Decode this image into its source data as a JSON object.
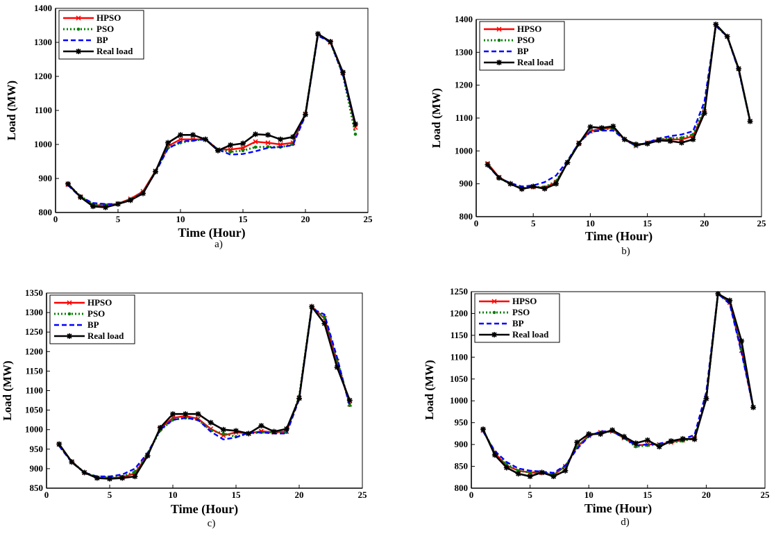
{
  "chart_data": [
    {
      "type": "line",
      "caption": "a)",
      "xlabel": "Time (Hour)",
      "ylabel": "Load (MW)",
      "xlim": [
        0,
        25
      ],
      "ylim": [
        800,
        1400
      ],
      "xticks": [
        0,
        5,
        10,
        15,
        20,
        25
      ],
      "yticks": [
        800,
        900,
        1000,
        1100,
        1200,
        1300,
        1400
      ],
      "legend_position": "top-left",
      "grid": false,
      "x": [
        1,
        2,
        3,
        4,
        5,
        6,
        7,
        8,
        9,
        10,
        11,
        12,
        13,
        14,
        15,
        16,
        17,
        18,
        19,
        20,
        21,
        22,
        23,
        24
      ],
      "series": [
        {
          "name": "HPSO",
          "color": "#ff0000",
          "style": "solid",
          "marker": "x",
          "values": [
            882,
            846,
            822,
            820,
            826,
            840,
            862,
            922,
            995,
            1015,
            1015,
            1015,
            985,
            985,
            990,
            1008,
            1005,
            1000,
            1005,
            1090,
            1325,
            1300,
            1210,
            1050
          ]
        },
        {
          "name": "PSO",
          "color": "#008000",
          "style": "dotted",
          "marker": "dot",
          "values": [
            882,
            848,
            825,
            822,
            825,
            838,
            860,
            920,
            990,
            1005,
            1012,
            1015,
            985,
            978,
            982,
            992,
            993,
            992,
            1000,
            1090,
            1325,
            1300,
            1205,
            1030
          ]
        },
        {
          "name": "BP",
          "color": "#0000ff",
          "style": "dashed",
          "marker": "none",
          "values": [
            880,
            845,
            828,
            825,
            825,
            836,
            858,
            918,
            988,
            1008,
            1012,
            1015,
            985,
            970,
            972,
            980,
            990,
            992,
            998,
            1085,
            1320,
            1300,
            1205,
            1055
          ]
        },
        {
          "name": "Real load",
          "color": "#000000",
          "style": "solid",
          "marker": "star",
          "values": [
            884,
            845,
            818,
            815,
            825,
            836,
            856,
            920,
            1005,
            1028,
            1028,
            1015,
            982,
            998,
            1003,
            1030,
            1028,
            1015,
            1022,
            1088,
            1325,
            1302,
            1212,
            1060
          ]
        }
      ]
    },
    {
      "type": "line",
      "caption": "b)",
      "xlabel": "Time (Hour)",
      "ylabel": "Load (MW)",
      "xlim": [
        0,
        25
      ],
      "ylim": [
        800,
        1400
      ],
      "xticks": [
        0,
        5,
        10,
        15,
        20,
        25
      ],
      "yticks": [
        800,
        900,
        1000,
        1100,
        1200,
        1300,
        1400
      ],
      "legend_position": "top-left",
      "grid": false,
      "x": [
        1,
        2,
        3,
        4,
        5,
        6,
        7,
        8,
        9,
        10,
        11,
        12,
        13,
        14,
        15,
        16,
        17,
        18,
        19,
        20,
        21,
        22,
        23,
        24
      ],
      "series": [
        {
          "name": "HPSO",
          "color": "#ff0000",
          "style": "solid",
          "marker": "x",
          "values": [
            962,
            920,
            900,
            885,
            890,
            888,
            905,
            965,
            1025,
            1060,
            1068,
            1070,
            1035,
            1015,
            1025,
            1035,
            1035,
            1035,
            1045,
            1120,
            1385,
            1348,
            1250,
            1090
          ]
        },
        {
          "name": "PSO",
          "color": "#008000",
          "style": "dotted",
          "marker": "dot",
          "values": [
            960,
            918,
            900,
            886,
            890,
            890,
            908,
            966,
            1025,
            1058,
            1065,
            1068,
            1035,
            1015,
            1025,
            1035,
            1038,
            1040,
            1050,
            1130,
            1382,
            1348,
            1248,
            1090
          ]
        },
        {
          "name": "BP",
          "color": "#0000ff",
          "style": "dashed",
          "marker": "none",
          "values": [
            955,
            918,
            902,
            892,
            895,
            905,
            925,
            970,
            1025,
            1058,
            1062,
            1062,
            1035,
            1015,
            1025,
            1038,
            1045,
            1050,
            1060,
            1150,
            1380,
            1348,
            1245,
            1090
          ]
        },
        {
          "name": "Real load",
          "color": "#000000",
          "style": "solid",
          "marker": "star",
          "values": [
            958,
            918,
            900,
            884,
            892,
            885,
            900,
            965,
            1022,
            1073,
            1070,
            1075,
            1035,
            1020,
            1022,
            1032,
            1030,
            1025,
            1035,
            1115,
            1385,
            1348,
            1250,
            1090
          ]
        }
      ]
    },
    {
      "type": "line",
      "caption": "c)",
      "xlabel": "Time (Hour)",
      "ylabel": "Load (MW)",
      "xlim": [
        0,
        25
      ],
      "ylim": [
        850,
        1350
      ],
      "xticks": [
        0,
        5,
        10,
        15,
        20,
        25
      ],
      "yticks": [
        850,
        900,
        950,
        1000,
        1050,
        1100,
        1150,
        1200,
        1250,
        1300,
        1350
      ],
      "legend_position": "top-left",
      "grid": false,
      "x": [
        1,
        2,
        3,
        4,
        5,
        6,
        7,
        8,
        9,
        10,
        11,
        12,
        13,
        14,
        15,
        16,
        17,
        18,
        19,
        20,
        21,
        22,
        23,
        24
      ],
      "series": [
        {
          "name": "HPSO",
          "color": "#ff0000",
          "style": "solid",
          "marker": "x",
          "values": [
            962,
            918,
            890,
            876,
            876,
            878,
            888,
            935,
            1003,
            1030,
            1035,
            1028,
            1002,
            985,
            993,
            990,
            996,
            993,
            995,
            1082,
            1315,
            1285,
            1175,
            1065
          ]
        },
        {
          "name": "PSO",
          "color": "#008000",
          "style": "dotted",
          "marker": "dot",
          "values": [
            960,
            918,
            890,
            878,
            878,
            880,
            892,
            938,
            998,
            1025,
            1030,
            1025,
            998,
            990,
            982,
            990,
            993,
            993,
            993,
            1085,
            1315,
            1288,
            1180,
            1062
          ]
        },
        {
          "name": "BP",
          "color": "#0000ff",
          "style": "dashed",
          "marker": "none",
          "values": [
            958,
            916,
            890,
            880,
            880,
            885,
            900,
            940,
            1000,
            1025,
            1030,
            1025,
            995,
            975,
            980,
            992,
            993,
            990,
            990,
            1078,
            1310,
            1295,
            1185,
            1060
          ]
        },
        {
          "name": "Real load",
          "color": "#000000",
          "style": "solid",
          "marker": "star",
          "values": [
            963,
            917,
            890,
            876,
            874,
            876,
            880,
            933,
            1005,
            1040,
            1040,
            1040,
            1018,
            1000,
            997,
            990,
            1010,
            995,
            1002,
            1080,
            1315,
            1272,
            1160,
            1075
          ]
        }
      ]
    },
    {
      "type": "line",
      "caption": "d)",
      "xlabel": "Time (Hour)",
      "ylabel": "Load (MW)",
      "xlim": [
        0,
        25
      ],
      "ylim": [
        800,
        1250
      ],
      "xticks": [
        0,
        5,
        10,
        15,
        20,
        25
      ],
      "yticks": [
        800,
        850,
        900,
        950,
        1000,
        1050,
        1100,
        1150,
        1200,
        1250
      ],
      "legend_position": "top-left",
      "grid": false,
      "x": [
        1,
        2,
        3,
        4,
        5,
        6,
        7,
        8,
        9,
        10,
        11,
        12,
        13,
        14,
        15,
        16,
        17,
        18,
        19,
        20,
        21,
        22,
        23,
        24
      ],
      "series": [
        {
          "name": "HPSO",
          "color": "#ff0000",
          "style": "solid",
          "marker": "x",
          "values": [
            932,
            880,
            852,
            840,
            836,
            835,
            830,
            850,
            895,
            920,
            928,
            930,
            915,
            898,
            900,
            900,
            905,
            910,
            915,
            1005,
            1245,
            1225,
            1115,
            985
          ]
        },
        {
          "name": "PSO",
          "color": "#008000",
          "style": "dotted",
          "marker": "dot",
          "values": [
            932,
            882,
            855,
            840,
            836,
            836,
            832,
            850,
            893,
            920,
            928,
            930,
            915,
            895,
            898,
            900,
            905,
            908,
            915,
            1005,
            1245,
            1225,
            1118,
            985
          ]
        },
        {
          "name": "BP",
          "color": "#0000ff",
          "style": "dashed",
          "marker": "none",
          "values": [
            930,
            885,
            860,
            845,
            840,
            838,
            835,
            852,
            890,
            918,
            930,
            930,
            915,
            898,
            900,
            902,
            908,
            912,
            922,
            1020,
            1245,
            1222,
            1110,
            985
          ]
        },
        {
          "name": "Real load",
          "color": "#000000",
          "style": "solid",
          "marker": "star",
          "values": [
            935,
            876,
            847,
            833,
            827,
            836,
            827,
            840,
            905,
            924,
            924,
            933,
            918,
            903,
            910,
            895,
            908,
            913,
            912,
            1005,
            1245,
            1230,
            1137,
            985
          ]
        }
      ]
    }
  ]
}
